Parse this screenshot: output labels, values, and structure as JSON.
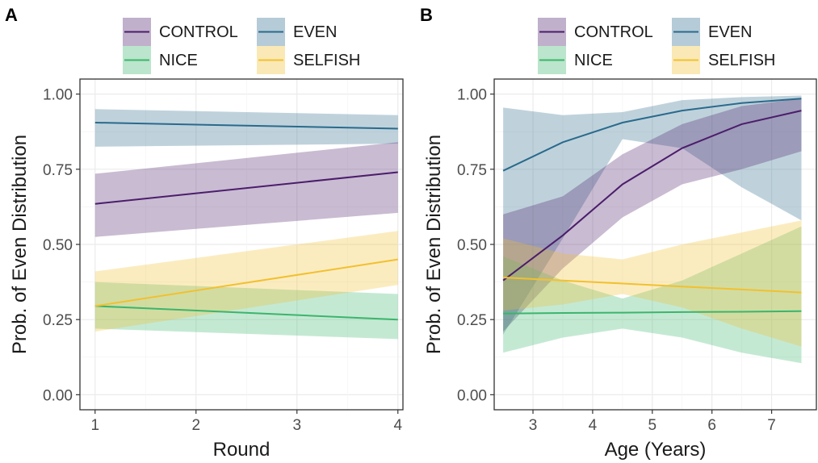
{
  "colors": {
    "CONTROL": "#4b1d6b",
    "EVEN": "#2a6a8c",
    "NICE": "#3bb56c",
    "SELFISH": "#f2c02f"
  },
  "chart_data": [
    {
      "type": "line",
      "panel_label": "A",
      "xlabel": "Round",
      "ylabel": "Prob. of Even Distribution",
      "xlim": [
        0.85,
        4.05
      ],
      "ylim": [
        -0.05,
        1.05
      ],
      "x_ticks": [
        1,
        2,
        3,
        4
      ],
      "y_ticks": [
        0,
        0.25,
        0.5,
        0.75,
        1
      ],
      "y_tick_labels": [
        "0.00",
        "0.25",
        "0.50",
        "0.75",
        "1.00"
      ],
      "grid": true,
      "legend": {
        "position": "top",
        "entries": [
          "CONTROL",
          "EVEN",
          "NICE",
          "SELFISH"
        ]
      },
      "series": [
        {
          "name": "CONTROL",
          "x": [
            1,
            4
          ],
          "y": [
            0.635,
            0.74
          ],
          "lower": [
            0.525,
            0.605
          ],
          "upper": [
            0.735,
            0.84
          ]
        },
        {
          "name": "EVEN",
          "x": [
            1,
            4
          ],
          "y": [
            0.905,
            0.885
          ],
          "lower": [
            0.825,
            0.835
          ],
          "upper": [
            0.95,
            0.93
          ]
        },
        {
          "name": "NICE",
          "x": [
            1,
            4
          ],
          "y": [
            0.295,
            0.25
          ],
          "lower": [
            0.22,
            0.185
          ],
          "upper": [
            0.375,
            0.335
          ]
        },
        {
          "name": "SELFISH",
          "x": [
            1,
            4
          ],
          "y": [
            0.295,
            0.45
          ],
          "lower": [
            0.21,
            0.365
          ],
          "upper": [
            0.41,
            0.545
          ]
        }
      ]
    },
    {
      "type": "line",
      "panel_label": "B",
      "xlabel": "Age (Years)",
      "ylabel": "Prob. of Even Distribution",
      "xlim": [
        2.35,
        7.75
      ],
      "ylim": [
        -0.05,
        1.05
      ],
      "x_ticks": [
        3,
        4,
        5,
        6,
        7
      ],
      "y_ticks": [
        0,
        0.25,
        0.5,
        0.75,
        1
      ],
      "y_tick_labels": [
        "0.00",
        "0.25",
        "0.50",
        "0.75",
        "1.00"
      ],
      "grid": true,
      "legend": {
        "position": "top",
        "entries": [
          "CONTROL",
          "EVEN",
          "NICE",
          "SELFISH"
        ]
      },
      "series": [
        {
          "name": "CONTROL",
          "x": [
            2.5,
            3.5,
            4.5,
            5.5,
            6.5,
            7.5
          ],
          "y": [
            0.38,
            0.53,
            0.7,
            0.82,
            0.9,
            0.945
          ],
          "lower": [
            0.21,
            0.42,
            0.59,
            0.7,
            0.75,
            0.81
          ],
          "upper": [
            0.6,
            0.66,
            0.8,
            0.9,
            0.96,
            0.985
          ]
        },
        {
          "name": "EVEN",
          "x": [
            2.5,
            3.5,
            4.5,
            5.5,
            6.5,
            7.5
          ],
          "y": [
            0.745,
            0.84,
            0.905,
            0.945,
            0.97,
            0.985
          ],
          "lower": [
            0.2,
            0.52,
            0.85,
            0.82,
            0.69,
            0.58
          ],
          "upper": [
            0.955,
            0.93,
            0.94,
            0.98,
            0.99,
            0.995
          ]
        },
        {
          "name": "NICE",
          "x": [
            2.5,
            3.5,
            4.5,
            5.5,
            6.5,
            7.5
          ],
          "y": [
            0.27,
            0.272,
            0.273,
            0.275,
            0.276,
            0.278
          ],
          "lower": [
            0.14,
            0.19,
            0.22,
            0.19,
            0.14,
            0.105
          ],
          "upper": [
            0.46,
            0.38,
            0.32,
            0.38,
            0.47,
            0.56
          ]
        },
        {
          "name": "SELFISH",
          "x": [
            2.5,
            3.5,
            4.5,
            5.5,
            6.5,
            7.5
          ],
          "y": [
            0.39,
            0.38,
            0.37,
            0.36,
            0.35,
            0.34
          ],
          "lower": [
            0.28,
            0.3,
            0.335,
            0.29,
            0.22,
            0.16
          ],
          "upper": [
            0.52,
            0.47,
            0.45,
            0.5,
            0.54,
            0.58
          ]
        }
      ]
    }
  ]
}
